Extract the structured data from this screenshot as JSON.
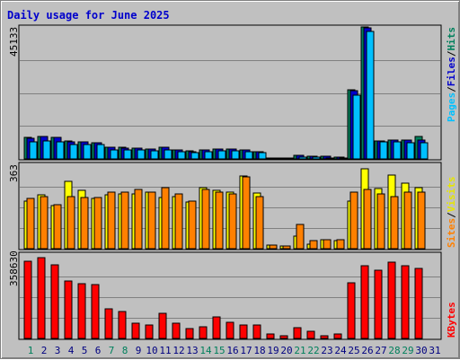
{
  "title": "Daily usage for June 2025",
  "colors": {
    "hits": "#00805c",
    "files": "#0000cc",
    "pages": "#00c0ff",
    "visits": "#ffff00",
    "sites": "#ff8000",
    "kbytes": "#ff0000",
    "weekday": "#000080",
    "weekend": "#00805c",
    "grid": "#808080"
  },
  "chart_data": [
    {
      "type": "bar",
      "panel": "hits-files-pages",
      "max_label": "45133",
      "legend": [
        "Pages",
        "Files",
        "Hits"
      ],
      "ylim": [
        0,
        45133
      ],
      "categories": [
        "1",
        "2",
        "3",
        "4",
        "5",
        "6",
        "7",
        "8",
        "9",
        "10",
        "11",
        "12",
        "13",
        "14",
        "15",
        "16",
        "17",
        "18",
        "19",
        "20",
        "21",
        "22",
        "23",
        "24",
        "25",
        "26",
        "27",
        "28",
        "29",
        "30",
        "31"
      ],
      "weekend_days": [
        "1",
        "7",
        "8",
        "14",
        "15",
        "21",
        "22",
        "28",
        "29"
      ],
      "series": [
        {
          "name": "Hits",
          "values": [
            7300,
            7600,
            7500,
            6000,
            5700,
            5600,
            4100,
            3900,
            3700,
            3500,
            4000,
            3200,
            2700,
            3100,
            3400,
            3400,
            3100,
            2500,
            300,
            300,
            1200,
            1000,
            900,
            600,
            23500,
            45000,
            6100,
            6500,
            6500,
            7800,
            0
          ]
        },
        {
          "name": "Files",
          "values": [
            7200,
            7600,
            7400,
            5900,
            5700,
            5500,
            4000,
            3800,
            3600,
            3400,
            3900,
            3100,
            2600,
            3000,
            3300,
            3300,
            3000,
            2400,
            250,
            250,
            1100,
            900,
            850,
            550,
            23400,
            44800,
            6000,
            6400,
            6400,
            6300,
            0
          ]
        },
        {
          "name": "Pages",
          "values": [
            5700,
            6200,
            5900,
            5000,
            4900,
            4800,
            3200,
            3100,
            3000,
            2900,
            3000,
            2500,
            2200,
            2600,
            2800,
            2700,
            2500,
            2000,
            150,
            150,
            500,
            500,
            400,
            300,
            21800,
            43500,
            5700,
            5800,
            5600,
            5600,
            0
          ]
        }
      ]
    },
    {
      "type": "bar",
      "panel": "visits-sites",
      "max_label": "363",
      "legend": [
        "Sites",
        "Visits"
      ],
      "ylim": [
        0,
        363
      ],
      "categories": [
        "1",
        "2",
        "3",
        "4",
        "5",
        "6",
        "7",
        "8",
        "9",
        "10",
        "11",
        "12",
        "13",
        "14",
        "15",
        "16",
        "17",
        "18",
        "19",
        "20",
        "21",
        "22",
        "23",
        "24",
        "25",
        "26",
        "27",
        "28",
        "29",
        "30",
        "31"
      ],
      "series": [
        {
          "name": "Visits",
          "values": [
            210,
            235,
            190,
            295,
            255,
            220,
            235,
            240,
            240,
            250,
            225,
            230,
            205,
            270,
            255,
            250,
            320,
            245,
            15,
            10,
            55,
            20,
            40,
            35,
            210,
            350,
            265,
            325,
            290,
            270,
            0
          ]
        },
        {
          "name": "Sites",
          "values": [
            220,
            230,
            195,
            230,
            225,
            225,
            250,
            250,
            260,
            250,
            270,
            240,
            210,
            260,
            250,
            240,
            315,
            230,
            15,
            10,
            105,
            35,
            40,
            40,
            250,
            260,
            240,
            230,
            250,
            250,
            0
          ]
        }
      ]
    },
    {
      "type": "bar",
      "panel": "kbytes",
      "max_label": "358630",
      "legend": [
        "KBytes"
      ],
      "ylim": [
        0,
        358630
      ],
      "categories": [
        "1",
        "2",
        "3",
        "4",
        "5",
        "6",
        "7",
        "8",
        "9",
        "10",
        "11",
        "12",
        "13",
        "14",
        "15",
        "16",
        "17",
        "18",
        "19",
        "20",
        "21",
        "22",
        "23",
        "24",
        "25",
        "26",
        "27",
        "28",
        "29",
        "30",
        "31"
      ],
      "series": [
        {
          "name": "KBytes",
          "values": [
            335000,
            350000,
            320000,
            250000,
            238000,
            233000,
            130000,
            115000,
            65000,
            60000,
            108000,
            65000,
            42000,
            50000,
            95000,
            70000,
            60000,
            60000,
            18000,
            10000,
            48000,
            30000,
            12000,
            20000,
            240000,
            315000,
            295000,
            330000,
            315000,
            305000,
            0
          ]
        }
      ]
    }
  ]
}
